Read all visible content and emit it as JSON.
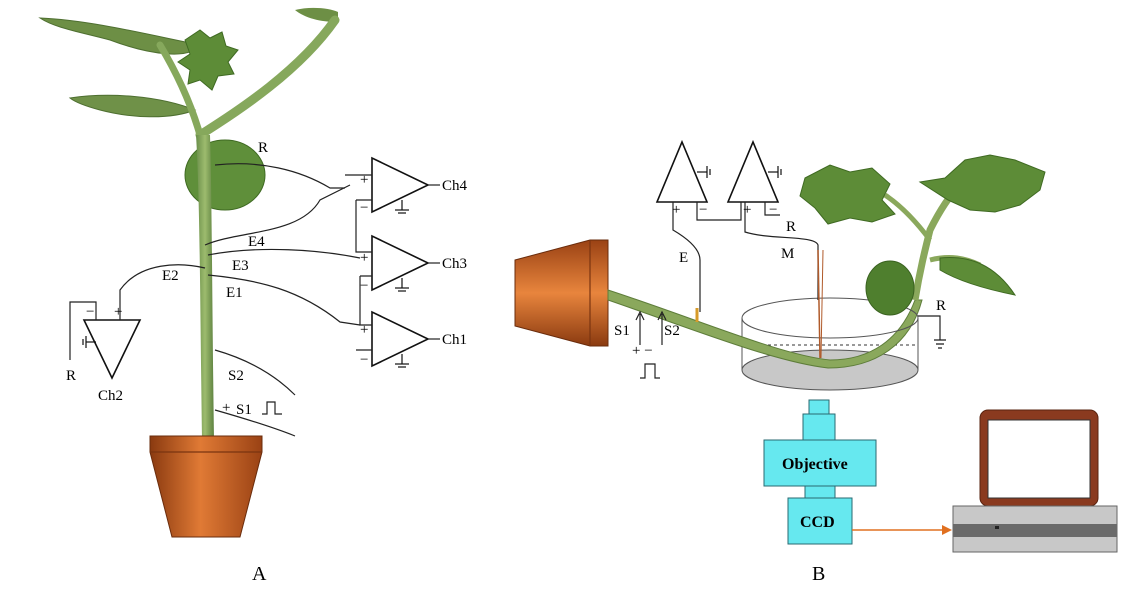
{
  "panel_a": {
    "caption": "A",
    "channels": {
      "ch1": "Ch1",
      "ch2": "Ch2",
      "ch3": "Ch3",
      "ch4": "Ch4"
    },
    "electrodes": {
      "reference_top": "R",
      "reference_ch2": "R",
      "e1": "E1",
      "e2": "E2",
      "e3": "E3",
      "e4": "E4",
      "s1": "S1",
      "s2": "S2"
    },
    "signs": {
      "plus": "+",
      "minus": "−"
    }
  },
  "panel_b": {
    "caption": "B",
    "labels": {
      "e": "E",
      "m": "M",
      "r_amp": "R",
      "r_bath": "R",
      "s1": "S1",
      "s2": "S2",
      "plus_minus": "+ −"
    },
    "objective_label": "Objective",
    "ccd_label": "CCD",
    "colors": {
      "box_fill": "#66e8ef",
      "pot": "#c85f1e",
      "arrow": "#e07020",
      "monitor_frame": "#8a3a1f"
    }
  }
}
